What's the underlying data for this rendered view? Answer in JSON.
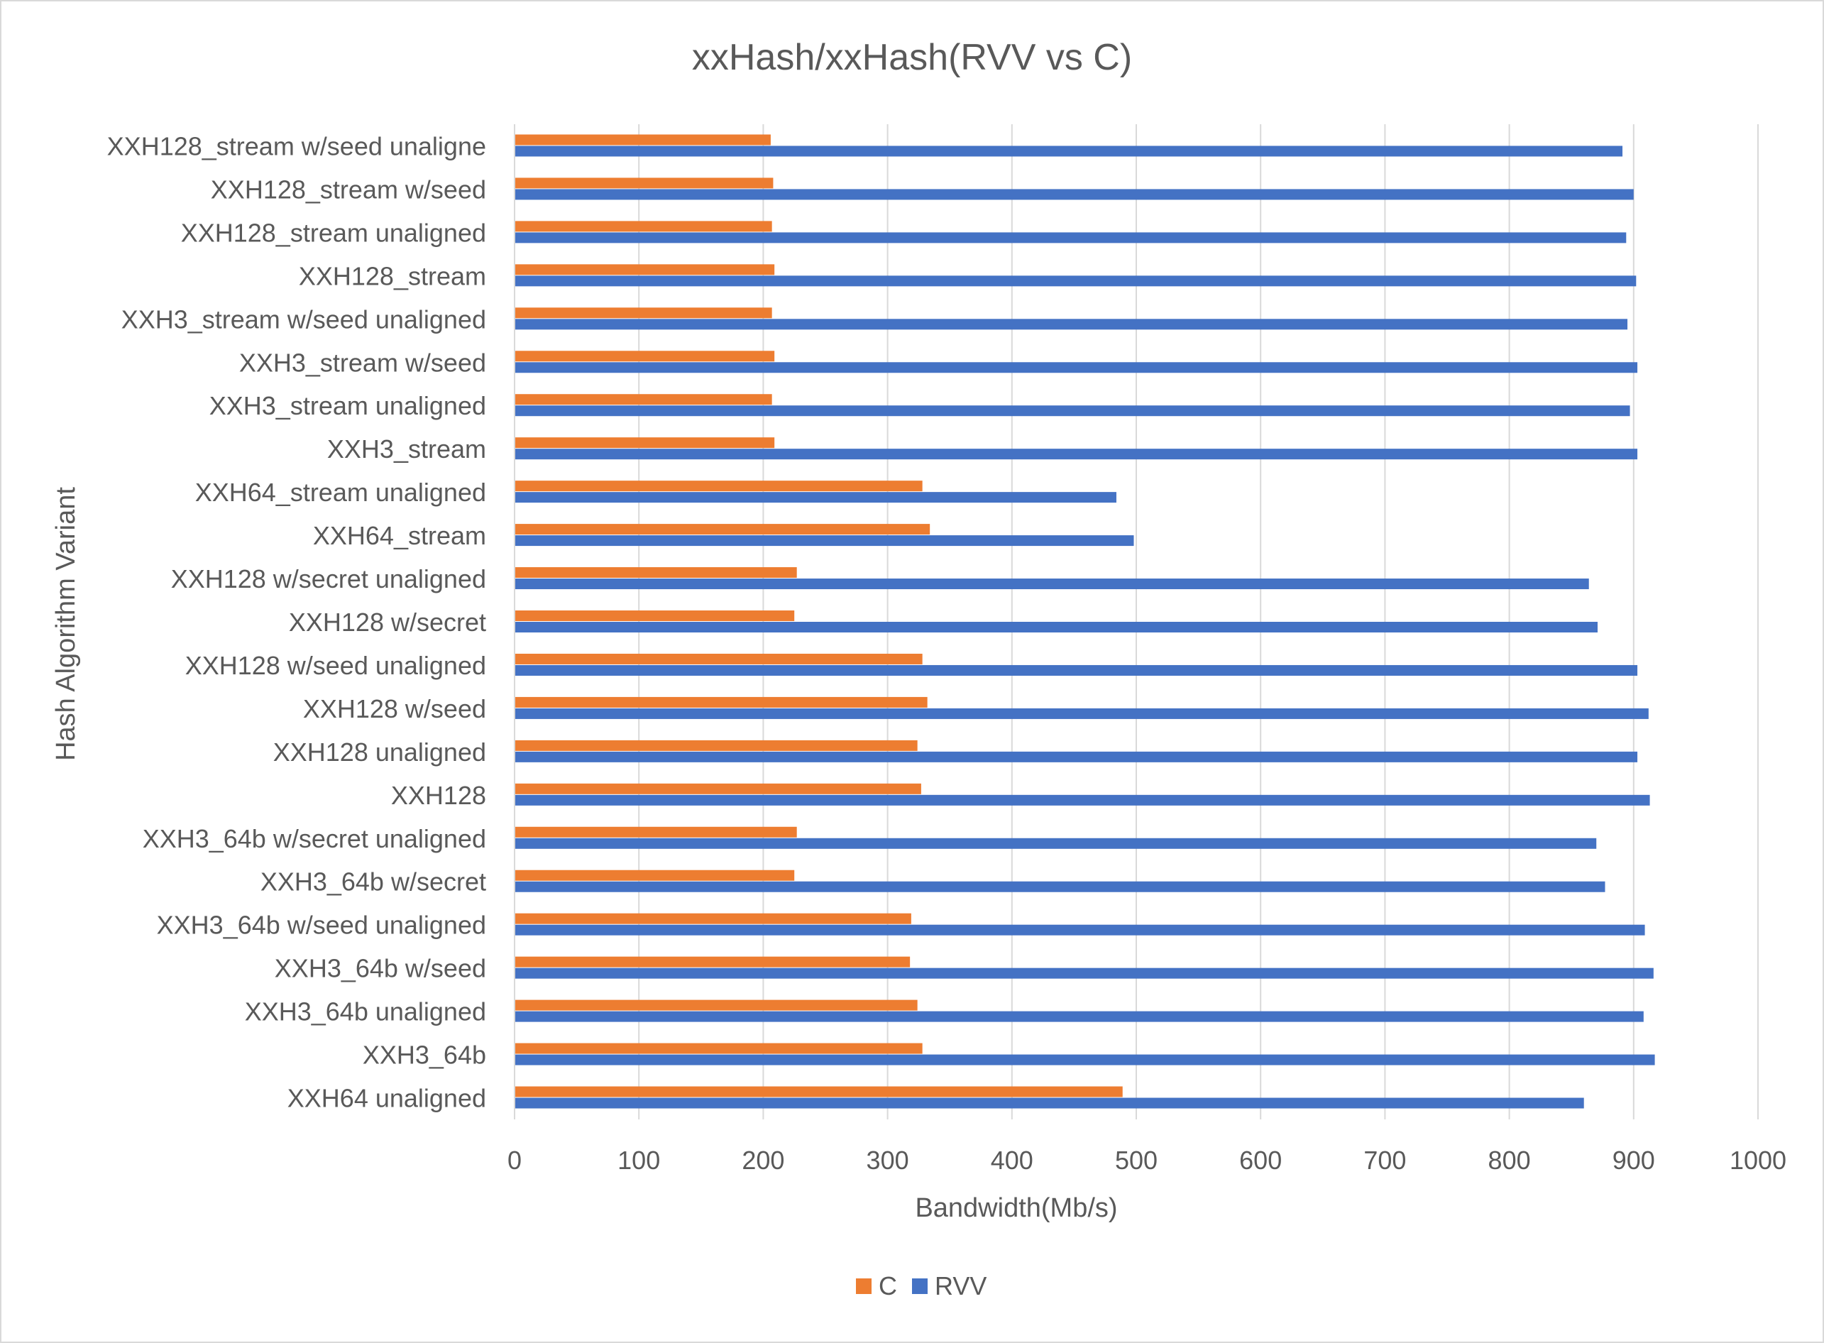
{
  "chart_data": {
    "type": "bar",
    "orientation": "horizontal",
    "title": "xxHash/xxHash(RVV vs C)",
    "xlabel": "Bandwidth(Mb/s)",
    "ylabel": "Hash Algorithm Variant",
    "xlim": [
      0,
      1000
    ],
    "xticks": [
      "0",
      "100",
      "200",
      "300",
      "400",
      "500",
      "600",
      "700",
      "800",
      "900",
      "1000"
    ],
    "grid": "vertical gridlines",
    "legend_position": "bottom",
    "categories": [
      "XXH128_stream w/seed unaligne",
      "XXH128_stream w/seed",
      "XXH128_stream unaligned",
      "XXH128_stream",
      "XXH3_stream w/seed unaligned",
      "XXH3_stream w/seed",
      "XXH3_stream unaligned",
      "XXH3_stream",
      "XXH64_stream unaligned",
      "XXH64_stream",
      "XXH128 w/secret unaligned",
      "XXH128 w/secret",
      "XXH128 w/seed unaligned",
      "XXH128 w/seed",
      "XXH128 unaligned",
      "XXH128",
      "XXH3_64b w/secret unaligned",
      "XXH3_64b w/secret",
      "XXH3_64b w/seed unaligned",
      "XXH3_64b w/seed",
      "XXH3_64b unaligned",
      "XXH3_64b",
      "XXH64 unaligned"
    ],
    "series": [
      {
        "name": "C",
        "color": "#ed7d31",
        "values": [
          206,
          208,
          207,
          209,
          207,
          209,
          207,
          209,
          328,
          334,
          227,
          225,
          328,
          332,
          324,
          327,
          227,
          225,
          319,
          318,
          324,
          328,
          489
        ]
      },
      {
        "name": "RVV",
        "color": "#4472c4",
        "values": [
          891,
          900,
          894,
          902,
          895,
          903,
          897,
          903,
          484,
          498,
          864,
          871,
          903,
          912,
          903,
          913,
          870,
          877,
          909,
          916,
          908,
          917,
          860
        ]
      }
    ]
  }
}
